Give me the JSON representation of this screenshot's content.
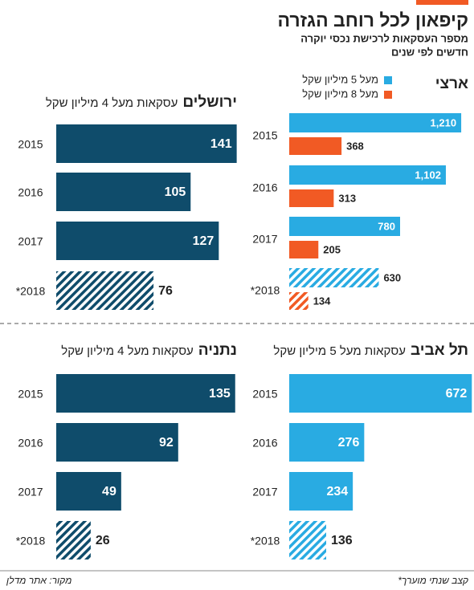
{
  "title": "קיפאון לכל רוחב הגזרה",
  "subtitle": [
    "מספר העסקאות לרכישת נכסי יוקרה",
    "חדשים לפי שנים"
  ],
  "note": "*קצב שנתי מוערך",
  "source": "מקור: אתר מדלן",
  "chart_data": [
    {
      "type": "bar",
      "orientation": "horizontal",
      "title": "ארצי",
      "categories": [
        "2015",
        "2016",
        "2017",
        "*2018"
      ],
      "hatched": [
        false,
        false,
        false,
        true
      ],
      "series": [
        {
          "name": "מעל 5 מיליון שקל",
          "color": "#29abe2",
          "values": [
            1210,
            1102,
            780,
            630
          ],
          "value_labels": [
            "1,210",
            "1,102",
            "780",
            "630"
          ]
        },
        {
          "name": "מעל 8 מיליון שקל",
          "color": "#f15a24",
          "values": [
            368,
            313,
            205,
            134
          ]
        }
      ],
      "xlim": [
        0,
        1300
      ],
      "legend": "top-right"
    },
    {
      "type": "bar",
      "orientation": "horizontal",
      "title": "ירושלים",
      "subtitle": "עסקאות מעל 4 מיליון שקל",
      "categories": [
        "2015",
        "2016",
        "2017",
        "*2018"
      ],
      "hatched": [
        false,
        false,
        false,
        true
      ],
      "values": [
        141,
        105,
        127,
        76
      ],
      "color": "#0f4c6b",
      "xlim": [
        0,
        145
      ]
    },
    {
      "type": "bar",
      "orientation": "horizontal",
      "title": "תל אביב",
      "subtitle": "עסקאות מעל 5 מיליון שקל",
      "categories": [
        "2015",
        "2016",
        "2017",
        "*2018"
      ],
      "hatched": [
        false,
        false,
        false,
        true
      ],
      "values": [
        672,
        276,
        234,
        136
      ],
      "color": "#29abe2",
      "xlim": [
        0,
        680
      ]
    },
    {
      "type": "bar",
      "orientation": "horizontal",
      "title": "נתניה",
      "subtitle": "עסקאות מעל 4 מיליון שקל",
      "categories": [
        "2015",
        "2016",
        "2017",
        "*2018"
      ],
      "hatched": [
        false,
        false,
        false,
        true
      ],
      "values": [
        135,
        92,
        49,
        26
      ],
      "color": "#0f4c6b",
      "xlim": [
        0,
        140
      ]
    }
  ]
}
